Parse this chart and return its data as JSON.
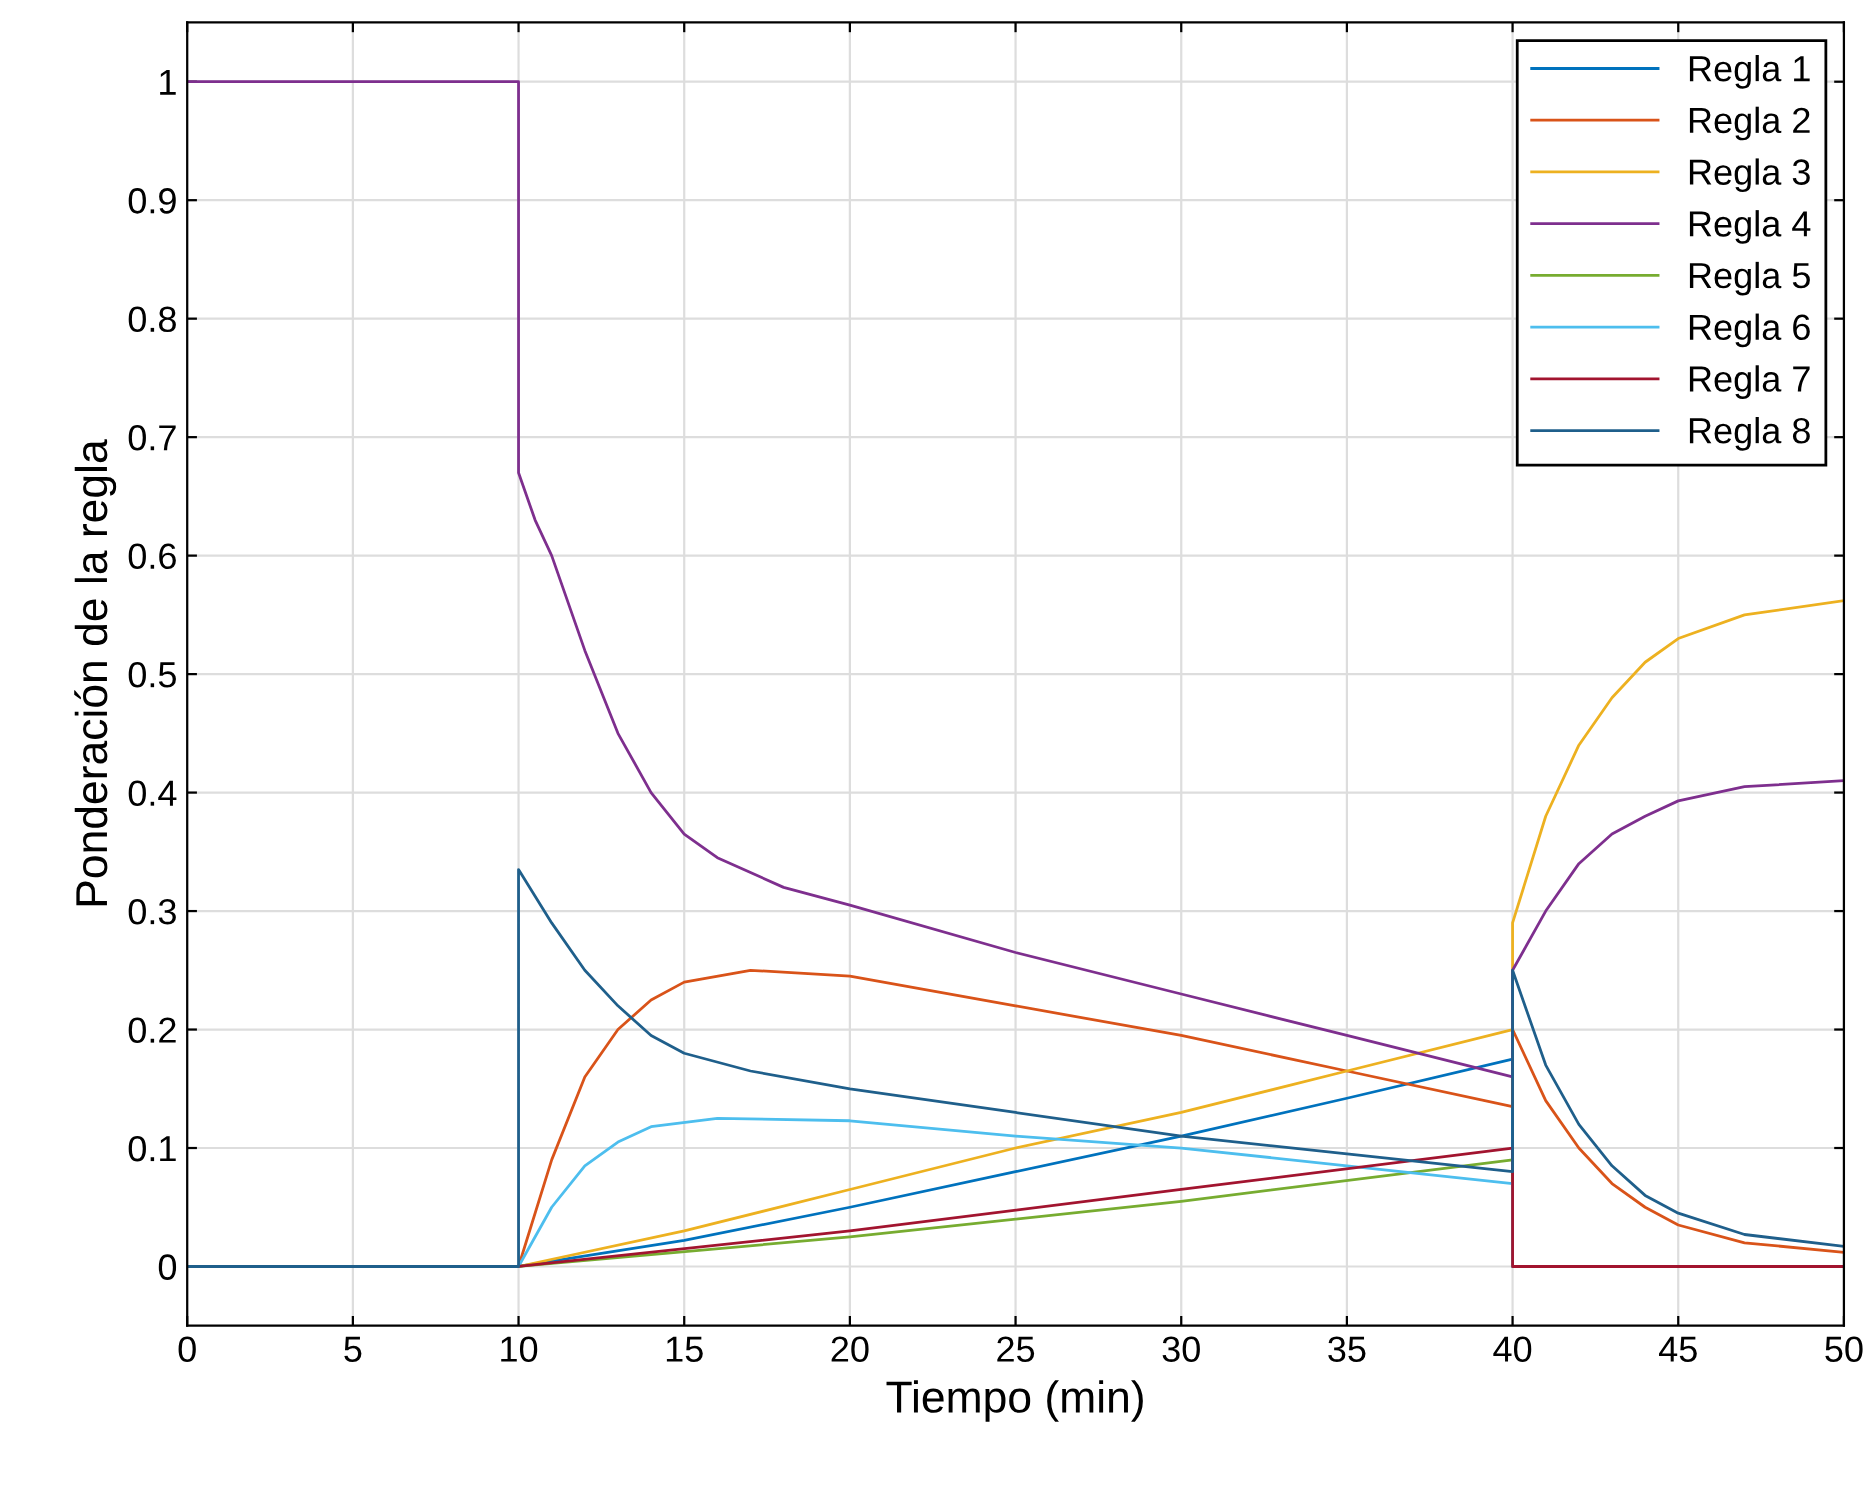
{
  "chart_data": {
    "type": "line",
    "xlabel": "Tiempo (min)",
    "ylabel": "Ponderación de la regla",
    "xlim": [
      0,
      50
    ],
    "xticks": [
      0,
      5,
      10,
      15,
      20,
      25,
      30,
      35,
      40,
      45,
      50
    ],
    "ylim": [
      -0.05,
      1.05
    ],
    "yticks": [
      0,
      0.1,
      0.2,
      0.3,
      0.4,
      0.5,
      0.6,
      0.7,
      0.8,
      0.9,
      1
    ],
    "grid": true,
    "legend": "top right",
    "line_style": "solid",
    "marker": "none",
    "series": [
      {
        "name": "Regla 1",
        "color": "#0072bd",
        "x": [
          0,
          10,
          15,
          20,
          25,
          30,
          35,
          40,
          40,
          50
        ],
        "values": [
          0,
          0,
          0.022,
          0.05,
          0.08,
          0.11,
          0.142,
          0.175,
          0,
          0
        ]
      },
      {
        "name": "Regla 2",
        "color": "#d95319",
        "x": [
          0,
          10,
          11,
          12,
          13,
          14,
          15,
          17,
          20,
          25,
          30,
          35,
          40,
          40,
          41,
          42,
          43,
          44,
          45,
          47,
          50
        ],
        "values": [
          0,
          0,
          0.09,
          0.16,
          0.2,
          0.225,
          0.24,
          0.25,
          0.245,
          0.22,
          0.195,
          0.165,
          0.135,
          0.2,
          0.14,
          0.1,
          0.07,
          0.05,
          0.035,
          0.02,
          0.012
        ]
      },
      {
        "name": "Regla 3",
        "color": "#edb120",
        "x": [
          0,
          10,
          15,
          20,
          25,
          30,
          35,
          40,
          40,
          41,
          42,
          43,
          44,
          45,
          47,
          50
        ],
        "values": [
          0,
          0,
          0.03,
          0.065,
          0.1,
          0.13,
          0.165,
          0.2,
          0.29,
          0.38,
          0.44,
          0.48,
          0.51,
          0.53,
          0.55,
          0.562
        ]
      },
      {
        "name": "Regla 4",
        "color": "#7e2f8e",
        "x": [
          0,
          10,
          10,
          10.5,
          11,
          12,
          13,
          14,
          15,
          16,
          18,
          20,
          25,
          30,
          35,
          40,
          40,
          41,
          42,
          43,
          44,
          45,
          47,
          50
        ],
        "values": [
          1,
          1,
          0.67,
          0.63,
          0.6,
          0.52,
          0.45,
          0.4,
          0.365,
          0.345,
          0.32,
          0.305,
          0.265,
          0.23,
          0.195,
          0.16,
          0.25,
          0.3,
          0.34,
          0.365,
          0.38,
          0.393,
          0.405,
          0.41
        ]
      },
      {
        "name": "Regla 5",
        "color": "#77ac30",
        "x": [
          0,
          10,
          20,
          30,
          40,
          40,
          50
        ],
        "values": [
          0,
          0,
          0.025,
          0.055,
          0.09,
          0,
          0
        ]
      },
      {
        "name": "Regla 6",
        "color": "#4dbeee",
        "x": [
          0,
          10,
          11,
          12,
          13,
          14,
          16,
          20,
          25,
          30,
          35,
          40,
          40,
          50
        ],
        "values": [
          0,
          0,
          0.05,
          0.085,
          0.105,
          0.118,
          0.125,
          0.123,
          0.11,
          0.1,
          0.085,
          0.07,
          0,
          0
        ]
      },
      {
        "name": "Regla 7",
        "color": "#a2142f",
        "x": [
          0,
          10,
          20,
          30,
          40,
          40,
          50
        ],
        "values": [
          0,
          0,
          0.03,
          0.065,
          0.1,
          0,
          0
        ]
      },
      {
        "name": "Regla 8",
        "color": "#1f5f8b",
        "x": [
          0,
          10,
          10,
          11,
          12,
          13,
          14,
          15,
          17,
          20,
          25,
          30,
          35,
          40,
          40,
          41,
          42,
          43,
          44,
          45,
          47,
          50
        ],
        "values": [
          0,
          0,
          0.335,
          0.29,
          0.25,
          0.22,
          0.195,
          0.18,
          0.165,
          0.15,
          0.13,
          0.11,
          0.095,
          0.08,
          0.25,
          0.17,
          0.12,
          0.085,
          0.06,
          0.045,
          0.027,
          0.017
        ]
      }
    ]
  }
}
